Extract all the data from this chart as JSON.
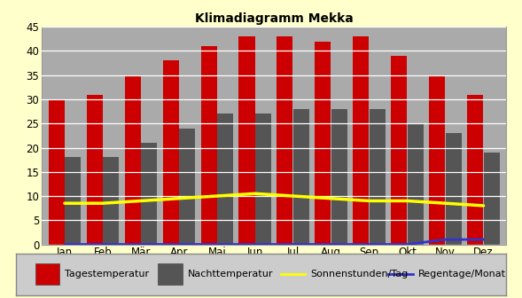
{
  "title": "Klimadiagramm Mekka",
  "months": [
    "Jan",
    "Feb",
    "Mär",
    "Apr",
    "Mai",
    "Jun",
    "Jul",
    "Aug",
    "Sep",
    "Okt",
    "Nov",
    "Dez"
  ],
  "tagestemperatur": [
    30,
    31,
    35,
    38,
    41,
    43,
    43,
    42,
    43,
    39,
    35,
    31
  ],
  "nachttemperatur": [
    18,
    18,
    21,
    24,
    27,
    27,
    28,
    28,
    28,
    25,
    23,
    19
  ],
  "sonnenstunden": [
    8.5,
    8.5,
    9.0,
    9.5,
    10.0,
    10.5,
    10.0,
    9.5,
    9.0,
    9.0,
    8.5,
    8.0
  ],
  "regentage": [
    0.0,
    0.0,
    0.0,
    0.0,
    0.0,
    0.0,
    0.0,
    0.0,
    0.0,
    0.0,
    1.0,
    1.0
  ],
  "bar_color_tag": "#cc0000",
  "bar_color_nacht": "#555555",
  "line_color_sonne": "#ffff00",
  "line_color_regen": "#3333cc",
  "ylim": [
    0,
    45
  ],
  "yticks": [
    0,
    5,
    10,
    15,
    20,
    25,
    30,
    35,
    40,
    45
  ],
  "background_outer": "#ffffcc",
  "background_plot": "#aaaaaa",
  "title_fontsize": 10,
  "legend_fontsize": 8,
  "bar_width": 0.42,
  "bar_gap": 0.01
}
